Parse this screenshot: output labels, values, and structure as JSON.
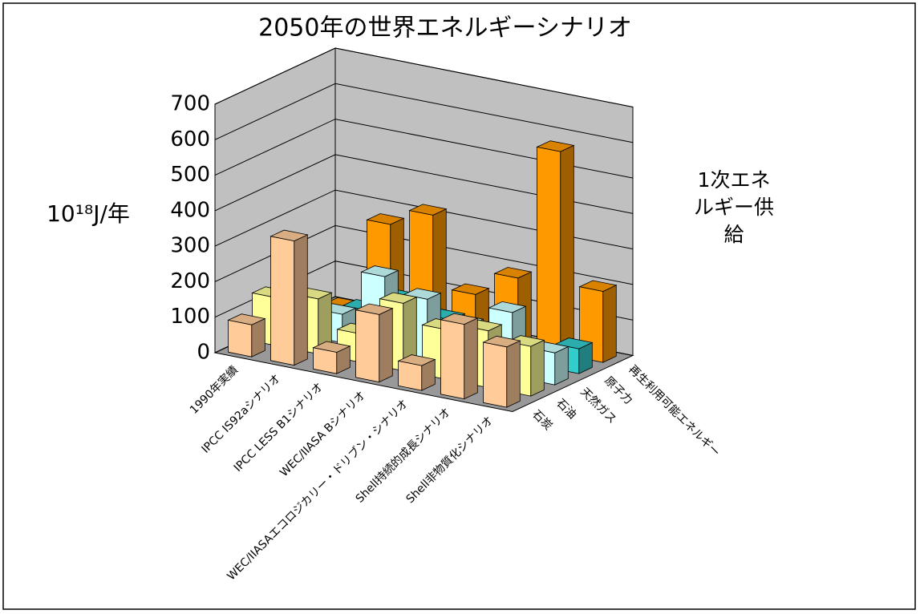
{
  "chart_data": {
    "type": "bar3d",
    "title": "2050年の世界エネルギーシナリオ",
    "y_label": "10¹⁸J/年",
    "z_label": "1次エネルギー供給",
    "categories": [
      "1990年実績",
      "IPCC IS92aシナリオ",
      "IPCC LESS B1シナリオ",
      "WEC/IIASA Bシナリオ",
      "WEC/IIASAエコロジカリー・ドリブン・シナリオ",
      "Shell持続的成長シナリオ",
      "Shell非物質化シナリオ"
    ],
    "series": [
      {
        "name": "石炭",
        "color": "#ffcc99",
        "values": [
          90,
          350,
          60,
          190,
          70,
          210,
          170
        ]
      },
      {
        "name": "石油",
        "color": "#ffff99",
        "values": [
          135,
          155,
          80,
          190,
          140,
          160,
          140
        ]
      },
      {
        "name": "天然ガス",
        "color": "#ccffff",
        "values": [
          75,
          80,
          210,
          170,
          120,
          180,
          90
        ]
      },
      {
        "name": "原子力",
        "color": "#33cccc",
        "values": [
          30,
          60,
          110,
          80,
          50,
          40,
          70
        ]
      },
      {
        "name": "再生利用可能エネルギー",
        "color": "#ff9900",
        "values": [
          10,
          270,
          320,
          120,
          190,
          570,
          200
        ]
      }
    ],
    "ylim": [
      0,
      700
    ],
    "yticks": [
      0,
      100,
      200,
      300,
      400,
      500,
      600,
      700
    ],
    "grid": true
  }
}
